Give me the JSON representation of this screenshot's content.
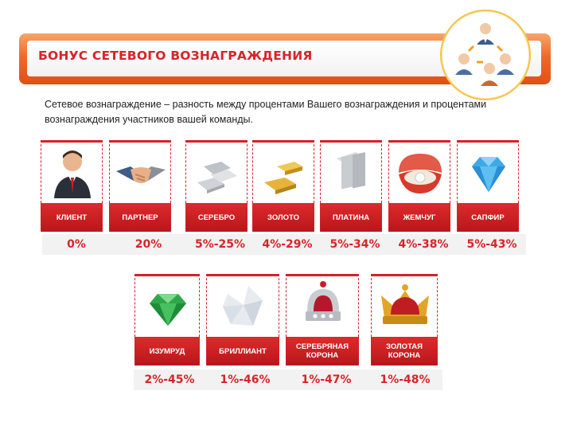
{
  "header": {
    "title": "БОНУС СЕТЕВОГО ВОЗНАГРАЖДЕНИЯ",
    "illustration_icon": "team-network-icon"
  },
  "intro": {
    "text": "Сетевое вознаграждение – разность между процентами Вашего вознаграждения и процентами вознаграждения участников вашей команды."
  },
  "ranks_row1": [
    {
      "label": "КЛИЕНТ",
      "percent": "0%",
      "icon": "businessman-icon"
    },
    {
      "label": "ПАРТНЕР",
      "percent": "20%",
      "icon": "handshake-icon"
    },
    {
      "label": "СЕРЕБРО",
      "percent": "5%-25%",
      "icon": "silver-bars-icon"
    },
    {
      "label": "ЗОЛОТО",
      "percent": "4%-29%",
      "icon": "gold-bars-icon"
    },
    {
      "label": "ПЛАТИНА",
      "percent": "5%-34%",
      "icon": "platinum-bars-icon"
    },
    {
      "label": "ЖЕМЧУГ",
      "percent": "4%-38%",
      "icon": "pearl-shell-icon"
    },
    {
      "label": "САПФИР",
      "percent": "5%-43%",
      "icon": "sapphire-icon"
    }
  ],
  "ranks_row2": [
    {
      "label": "ИЗУМРУД",
      "percent": "2%-45%",
      "icon": "emerald-icon"
    },
    {
      "label": "БРИЛЛИАНТ",
      "percent": "1%-46%",
      "icon": "diamond-icon"
    },
    {
      "label": "СЕРЕБРЯНАЯ КОРОНА",
      "percent": "1%-47%",
      "icon": "silver-crown-icon"
    },
    {
      "label": "ЗОЛОТАЯ КОРОНА",
      "percent": "1%-48%",
      "icon": "gold-crown-icon"
    }
  ]
}
